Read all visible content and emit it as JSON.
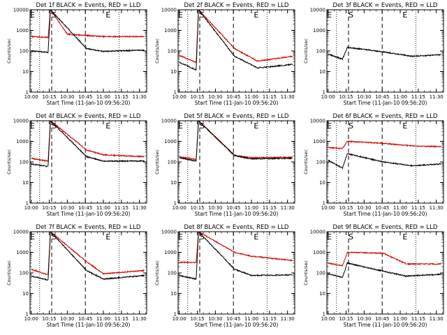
{
  "colors": {
    "events": "#000000",
    "lld": "#d40000",
    "axis": "#000000"
  },
  "chart_data": [
    {
      "type": "line",
      "title": "Det 1f BLACK = Events, RED = LLD",
      "xlabel": "Start Time (11-Jan-10 09:56:20)",
      "ylabel": "Counts/sec",
      "yscale": "log",
      "ylim": [
        1,
        10000
      ],
      "xlim": [
        "09:59",
        "11:36"
      ],
      "x_ticks": [
        "10:00",
        "10:15",
        "10:30",
        "10:45",
        "11:00",
        "11:15",
        "11:30"
      ],
      "y_ticks": [
        "1",
        "10",
        "100",
        "1000",
        "10000"
      ],
      "markers": [
        "E",
        "S",
        "E"
      ],
      "series": [
        {
          "name": "Events",
          "color": "#000000",
          "approx_values": [
            {
              "time": "10:00",
              "value": 100
            },
            {
              "time": "10:10",
              "value": 90
            },
            {
              "time": "10:14",
              "value": 85
            },
            {
              "time": "10:16",
              "value": 10000
            },
            {
              "time": "10:46",
              "value": 130
            },
            {
              "time": "11:00",
              "value": 95
            },
            {
              "time": "11:34",
              "value": 110
            }
          ]
        },
        {
          "name": "LLD",
          "color": "#d40000",
          "approx_values": [
            {
              "time": "10:00",
              "value": 500
            },
            {
              "time": "10:14",
              "value": 450
            },
            {
              "time": "10:16",
              "value": 10000
            },
            {
              "time": "10:30",
              "value": 650
            },
            {
              "time": "11:00",
              "value": 500
            },
            {
              "time": "11:34",
              "value": 500
            }
          ]
        }
      ]
    },
    {
      "type": "line",
      "title": "Det 2f BLACK = Events, RED = LLD",
      "xlabel": "Start Time (11-Jan-10 09:56:20)",
      "ylabel": "Counts/sec",
      "yscale": "log",
      "ylim": [
        1,
        10000
      ],
      "xlim": [
        "09:59",
        "11:36"
      ],
      "x_ticks": [
        "10:00",
        "10:15",
        "10:30",
        "10:45",
        "11:00",
        "11:15",
        "11:30"
      ],
      "y_ticks": [
        "1",
        "10",
        "100",
        "1000",
        "10000"
      ],
      "markers": [
        "E",
        "S",
        "E"
      ],
      "series": [
        {
          "name": "Events",
          "color": "#000000",
          "approx_values": [
            {
              "time": "10:00",
              "value": 28
            },
            {
              "time": "10:14",
              "value": 12
            },
            {
              "time": "10:16",
              "value": 10000
            },
            {
              "time": "10:46",
              "value": 55
            },
            {
              "time": "11:05",
              "value": 15
            },
            {
              "time": "11:34",
              "value": 22
            }
          ]
        },
        {
          "name": "LLD",
          "color": "#d40000",
          "approx_values": [
            {
              "time": "10:00",
              "value": 60
            },
            {
              "time": "10:14",
              "value": 28
            },
            {
              "time": "10:16",
              "value": 10000
            },
            {
              "time": "10:46",
              "value": 130
            },
            {
              "time": "11:05",
              "value": 32
            },
            {
              "time": "11:34",
              "value": 55
            }
          ]
        }
      ]
    },
    {
      "type": "line",
      "title": "Det 3f BLACK = Events, RED = LLD",
      "xlabel": "Start Time (11-Jan-10 09:56:20)",
      "ylabel": "Counts/sec",
      "yscale": "log",
      "ylim": [
        1,
        10000
      ],
      "xlim": [
        "09:59",
        "11:36"
      ],
      "x_ticks": [
        "10:00",
        "10:15",
        "10:30",
        "10:45",
        "11:00",
        "11:15",
        "11:30"
      ],
      "y_ticks": [
        "1",
        "10",
        "100",
        "1000",
        "10000"
      ],
      "markers": [
        "E",
        "S",
        "E"
      ],
      "series": [
        {
          "name": "Events",
          "color": "#000000",
          "approx_values": [
            {
              "time": "10:00",
              "value": 70
            },
            {
              "time": "10:12",
              "value": 40
            },
            {
              "time": "10:16",
              "value": 150
            },
            {
              "time": "10:46",
              "value": 90
            },
            {
              "time": "11:10",
              "value": 55
            },
            {
              "time": "11:34",
              "value": 65
            }
          ]
        }
      ]
    },
    {
      "type": "line",
      "title": "Det 4f BLACK = Events, RED = LLD",
      "xlabel": "Start Time (11-Jan-10 09:56:20)",
      "ylabel": "Counts/sec",
      "yscale": "log",
      "ylim": [
        1,
        10000
      ],
      "xlim": [
        "09:59",
        "11:36"
      ],
      "x_ticks": [
        "10:00",
        "10:15",
        "10:30",
        "10:45",
        "11:00",
        "11:15",
        "11:30"
      ],
      "y_ticks": [
        "1",
        "10",
        "100",
        "1000",
        "10000"
      ],
      "markers": [
        "E",
        "S",
        "E"
      ],
      "series": [
        {
          "name": "Events",
          "color": "#000000",
          "approx_values": [
            {
              "time": "10:00",
              "value": 80
            },
            {
              "time": "10:14",
              "value": 60
            },
            {
              "time": "10:16",
              "value": 10000
            },
            {
              "time": "10:46",
              "value": 180
            },
            {
              "time": "11:00",
              "value": 110
            },
            {
              "time": "11:34",
              "value": 110
            }
          ]
        },
        {
          "name": "LLD",
          "color": "#d40000",
          "approx_values": [
            {
              "time": "10:00",
              "value": 150
            },
            {
              "time": "10:14",
              "value": 110
            },
            {
              "time": "10:16",
              "value": 10000
            },
            {
              "time": "10:46",
              "value": 380
            },
            {
              "time": "11:00",
              "value": 220
            },
            {
              "time": "11:34",
              "value": 180
            }
          ]
        }
      ]
    },
    {
      "type": "line",
      "title": "Det 5f BLACK = Events, RED = LLD",
      "xlabel": "Start Time (11-Jan-10 09:56:20)",
      "ylabel": "Counts/sec",
      "yscale": "log",
      "ylim": [
        1,
        10000
      ],
      "xlim": [
        "09:59",
        "11:36"
      ],
      "x_ticks": [
        "10:00",
        "10:15",
        "10:30",
        "10:45",
        "11:00",
        "11:15",
        "11:30"
      ],
      "y_ticks": [
        "1",
        "10",
        "100",
        "1000",
        "10000"
      ],
      "markers": [
        "E",
        "S",
        "E"
      ],
      "series": [
        {
          "name": "Events",
          "color": "#000000",
          "approx_values": [
            {
              "time": "10:00",
              "value": 160
            },
            {
              "time": "10:14",
              "value": 110
            },
            {
              "time": "10:16",
              "value": 10000
            },
            {
              "time": "10:46",
              "value": 200
            },
            {
              "time": "11:00",
              "value": 140
            },
            {
              "time": "11:34",
              "value": 150
            }
          ]
        },
        {
          "name": "LLD",
          "color": "#d40000",
          "approx_values": [
            {
              "time": "10:00",
              "value": 180
            },
            {
              "time": "10:14",
              "value": 130
            },
            {
              "time": "10:16",
              "value": 10000
            },
            {
              "time": "10:46",
              "value": 210
            },
            {
              "time": "11:00",
              "value": 160
            },
            {
              "time": "11:34",
              "value": 170
            }
          ]
        }
      ]
    },
    {
      "type": "line",
      "title": "Det 6f BLACK = Events, RED = LLD",
      "xlabel": "Start Time (11-Jan-10 09:56:20)",
      "ylabel": "Counts/sec",
      "yscale": "log",
      "ylim": [
        1,
        10000
      ],
      "xlim": [
        "09:59",
        "11:36"
      ],
      "x_ticks": [
        "10:00",
        "10:15",
        "10:30",
        "10:45",
        "11:00",
        "11:15",
        "11:30"
      ],
      "y_ticks": [
        "1",
        "10",
        "100",
        "1000",
        "10000"
      ],
      "markers": [
        "E",
        "S",
        "E"
      ],
      "series": [
        {
          "name": "Events",
          "color": "#000000",
          "approx_values": [
            {
              "time": "10:00",
              "value": 120
            },
            {
              "time": "10:12",
              "value": 50
            },
            {
              "time": "10:16",
              "value": 250
            },
            {
              "time": "10:46",
              "value": 100
            },
            {
              "time": "11:10",
              "value": 65
            },
            {
              "time": "11:34",
              "value": 80
            }
          ]
        },
        {
          "name": "LLD",
          "color": "#d40000",
          "approx_values": [
            {
              "time": "10:00",
              "value": 500
            },
            {
              "time": "10:12",
              "value": 450
            },
            {
              "time": "10:16",
              "value": 1000
            },
            {
              "time": "10:46",
              "value": 800
            },
            {
              "time": "11:10",
              "value": 600
            },
            {
              "time": "11:34",
              "value": 550
            }
          ]
        }
      ]
    },
    {
      "type": "line",
      "title": "Det 7f BLACK = Events, RED = LLD",
      "xlabel": "Start Time (11-Jan-10 09:56:20)",
      "ylabel": "Counts/sec",
      "yscale": "log",
      "ylim": [
        1,
        10000
      ],
      "xlim": [
        "09:59",
        "11:36"
      ],
      "x_ticks": [
        "10:00",
        "10:15",
        "10:30",
        "10:45",
        "11:00",
        "11:15",
        "11:30"
      ],
      "y_ticks": [
        "1",
        "10",
        "100",
        "1000",
        "10000"
      ],
      "markers": [
        "E",
        "S",
        "E"
      ],
      "series": [
        {
          "name": "Events",
          "color": "#000000",
          "approx_values": [
            {
              "time": "10:00",
              "value": 70
            },
            {
              "time": "10:14",
              "value": 45
            },
            {
              "time": "10:16",
              "value": 10000
            },
            {
              "time": "10:46",
              "value": 130
            },
            {
              "time": "11:00",
              "value": 50
            },
            {
              "time": "11:34",
              "value": 75
            }
          ]
        },
        {
          "name": "LLD",
          "color": "#d40000",
          "approx_values": [
            {
              "time": "10:00",
              "value": 150
            },
            {
              "time": "10:14",
              "value": 80
            },
            {
              "time": "10:16",
              "value": 10000
            },
            {
              "time": "10:46",
              "value": 350
            },
            {
              "time": "11:00",
              "value": 90
            },
            {
              "time": "11:34",
              "value": 130
            }
          ]
        }
      ]
    },
    {
      "type": "line",
      "title": "Det 8f BLACK = Events, RED = LLD",
      "xlabel": "Start Time (11-Jan-10 09:56:20)",
      "ylabel": "Counts/sec",
      "yscale": "log",
      "ylim": [
        1,
        10000
      ],
      "xlim": [
        "09:59",
        "11:36"
      ],
      "x_ticks": [
        "10:00",
        "10:15",
        "10:30",
        "10:45",
        "11:00",
        "11:15",
        "11:30"
      ],
      "y_ticks": [
        "1",
        "10",
        "100",
        "1000",
        "10000"
      ],
      "markers": [
        "E",
        "S",
        "E"
      ],
      "series": [
        {
          "name": "Events",
          "color": "#000000",
          "approx_values": [
            {
              "time": "10:00",
              "value": 75
            },
            {
              "time": "10:14",
              "value": 50
            },
            {
              "time": "10:16",
              "value": 10000
            },
            {
              "time": "10:46",
              "value": 150
            },
            {
              "time": "11:00",
              "value": 75
            },
            {
              "time": "11:34",
              "value": 80
            }
          ]
        },
        {
          "name": "LLD",
          "color": "#d40000",
          "approx_values": [
            {
              "time": "10:00",
              "value": 330
            },
            {
              "time": "10:14",
              "value": 320
            },
            {
              "time": "10:16",
              "value": 10000
            },
            {
              "time": "10:46",
              "value": 1000
            },
            {
              "time": "11:00",
              "value": 650
            },
            {
              "time": "11:34",
              "value": 400
            }
          ]
        }
      ]
    },
    {
      "type": "line",
      "title": "Det 9f BLACK = Events, RED = LLD",
      "xlabel": "Start Time (11-Jan-10 09:56:20)",
      "ylabel": "Counts/sec",
      "yscale": "log",
      "ylim": [
        1,
        10000
      ],
      "xlim": [
        "09:59",
        "11:36"
      ],
      "x_ticks": [
        "10:00",
        "10:15",
        "10:30",
        "10:45",
        "11:00",
        "11:15",
        "11:30"
      ],
      "y_ticks": [
        "1",
        "10",
        "100",
        "1000",
        "10000"
      ],
      "markers": [
        "E",
        "S",
        "E"
      ],
      "series": [
        {
          "name": "Events",
          "color": "#000000",
          "approx_values": [
            {
              "time": "10:00",
              "value": 90
            },
            {
              "time": "10:12",
              "value": 60
            },
            {
              "time": "10:16",
              "value": 300
            },
            {
              "time": "10:46",
              "value": 120
            },
            {
              "time": "11:05",
              "value": 70
            },
            {
              "time": "11:34",
              "value": 85
            }
          ]
        },
        {
          "name": "LLD",
          "color": "#d40000",
          "approx_values": [
            {
              "time": "10:00",
              "value": 300
            },
            {
              "time": "10:12",
              "value": 220
            },
            {
              "time": "10:16",
              "value": 1000
            },
            {
              "time": "10:46",
              "value": 900
            },
            {
              "time": "11:05",
              "value": 270
            },
            {
              "time": "11:34",
              "value": 270
            }
          ]
        }
      ]
    }
  ]
}
